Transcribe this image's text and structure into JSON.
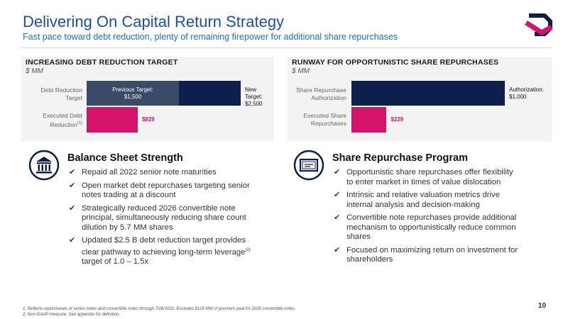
{
  "header": {
    "title": "Delivering On Capital Return Strategy",
    "subtitle": "Fast pace toward debt reduction, plenty of remaining firepower for additional share repurchases"
  },
  "colors": {
    "navy": "#0d1f4d",
    "slate": "#3b4a67",
    "magenta": "#d4146a",
    "title_blue": "#1e4e9a"
  },
  "chart_data": [
    {
      "type": "bar",
      "orientation": "horizontal",
      "title": "INCREASING DEBT REDUCTION TARGET",
      "unit": "$ MM",
      "categories": [
        "Debt Reduction Target",
        "Executed Debt Reduction(1)"
      ],
      "series": [
        {
          "name": "Previous Target",
          "values": [
            1500,
            null
          ]
        },
        {
          "name": "New Target",
          "values": [
            2500,
            null
          ]
        },
        {
          "name": "Executed",
          "values": [
            null,
            829
          ]
        }
      ],
      "labels": {
        "previous_target": "Previous Target:",
        "previous_value": "$1,500",
        "new_target": "New Target:",
        "new_value": "$2,500",
        "executed": "$829",
        "cat_target_1": "Debt Reduction",
        "cat_target_2": "Target",
        "cat_exec_1": "Executed Debt",
        "cat_exec_2": "Reduction",
        "cat_exec_sup": "(1)"
      },
      "xlim": [
        0,
        2500
      ]
    },
    {
      "type": "bar",
      "orientation": "horizontal",
      "title": "RUNWAY FOR OPPORTUNISTIC SHARE REPURCHASES",
      "unit": "$ MM",
      "categories": [
        "Share Repurchase Authorization",
        "Executed Share Repurchases"
      ],
      "values": [
        1000,
        229
      ],
      "labels": {
        "authorization": "Authorization:",
        "authorization_value": "$1,000",
        "executed": "$229",
        "cat_auth_1": "Share Repurchase",
        "cat_auth_2": "Authorization",
        "cat_exec_1": "Executed Share",
        "cat_exec_2": "Repurchases"
      },
      "xlim": [
        0,
        1000
      ]
    }
  ],
  "balance_sheet": {
    "heading": "Balance Sheet Strength",
    "icon": "bank-icon",
    "bullets": [
      "Repaid all 2022 senior note maturities",
      "Open market debt repurchases targeting senior notes trading at a discount",
      "Strategically reduced 2026 convertible note principal, simultaneously reducing share count dilution by 5.7 MM shares"
    ],
    "last_bullet_pre": "Updated $2.5 B debt reduction target provides clear pathway to achieving long-term leverage",
    "last_bullet_sup": "(2)",
    "last_bullet_post": " target of 1.0 – 1.5x"
  },
  "repurchase": {
    "heading": "Share Repurchase Program",
    "icon": "certificate-icon",
    "bullets": [
      "Opportunistic share repurchases offer flexibility to enter market in times of value dislocation",
      "Intrinsic and relative valuation metrics drive internal analysis and decision-making",
      "Convertible note repurchases provide additional mechanism to opportunistically reduce common shares",
      "Focused on maximizing return on investment for shareholders"
    ]
  },
  "footnotes": [
    "1.    Reflects repurchases of senior notes and convertible notes through 7/26/2022. Excludes $128 MM of premium paid for 2026 convertible notes.",
    "2.    Non-GAAP measure. See appendix for definition."
  ],
  "page_number": "10"
}
